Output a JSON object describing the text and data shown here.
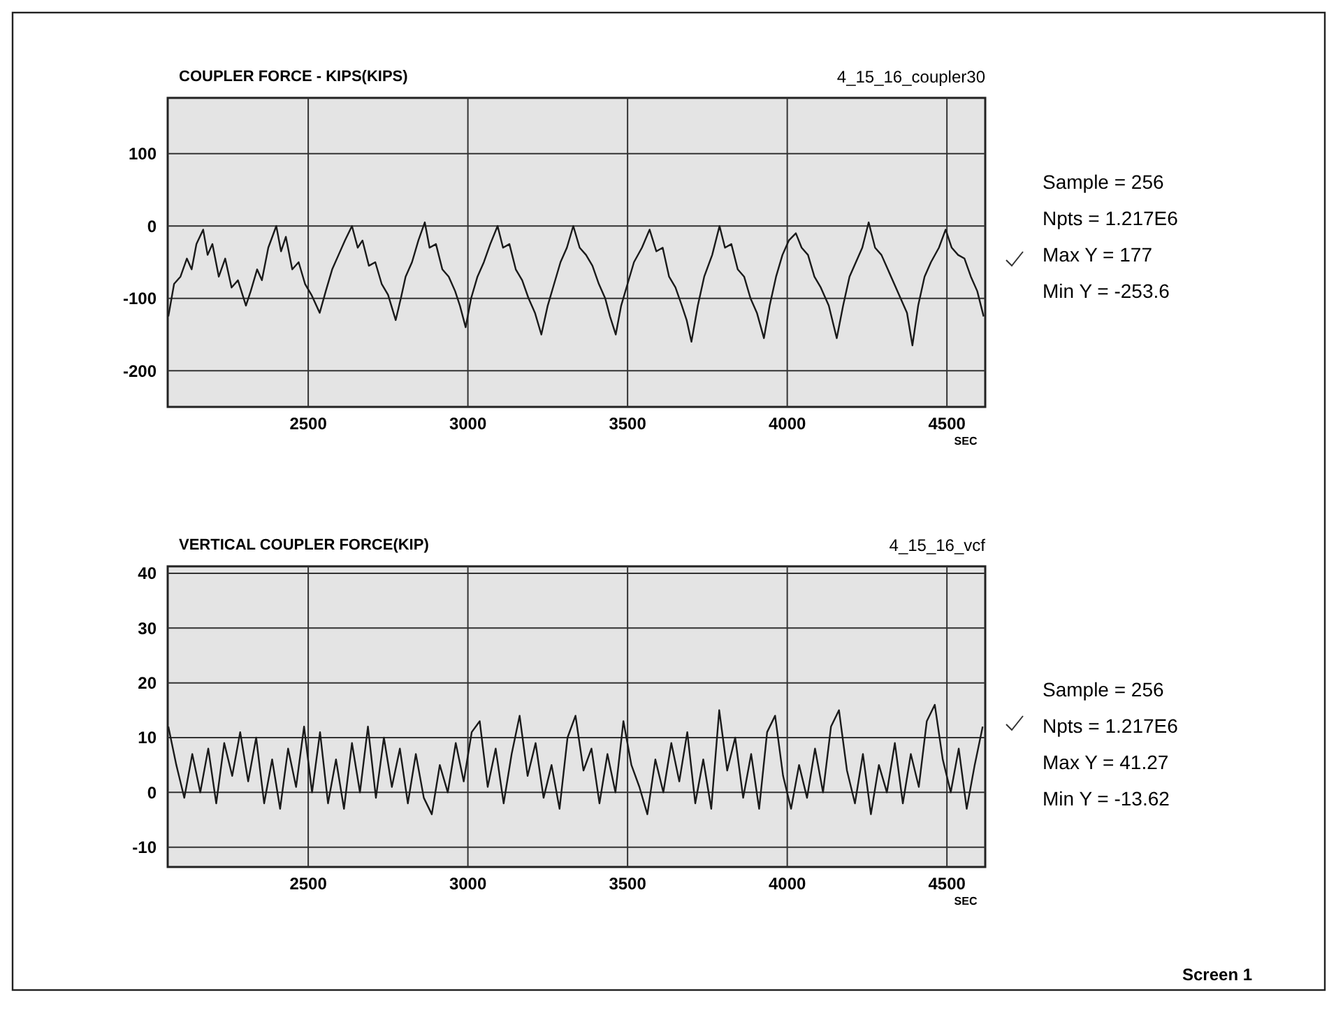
{
  "chart_data": [
    {
      "type": "line",
      "title": "COUPLER FORCE - KIPS(KIPS)",
      "subtitle": "4_15_16_coupler30",
      "xlabel": "SEC",
      "xlim": [
        2060,
        4620
      ],
      "ylim": [
        -250,
        177
      ],
      "xticks": [
        2500,
        3000,
        3500,
        4000,
        4500
      ],
      "yticks": [
        100,
        0,
        -100,
        -200
      ],
      "grid": true,
      "annotations": [
        "Sample = 256",
        "Npts  = 1.217E6",
        "Max Y  = 177",
        "Min Y  = -253.6"
      ],
      "series": [
        {
          "color": "#1a1a1a",
          "x": [
            2062,
            2080,
            2100,
            2120,
            2135,
            2150,
            2171,
            2185,
            2200,
            2220,
            2240,
            2260,
            2280,
            2305,
            2320,
            2340,
            2355,
            2375,
            2400,
            2415,
            2430,
            2450,
            2470,
            2490,
            2510,
            2536,
            2555,
            2575,
            2595,
            2615,
            2637,
            2655,
            2670,
            2690,
            2710,
            2730,
            2750,
            2774,
            2790,
            2805,
            2825,
            2845,
            2865,
            2880,
            2900,
            2920,
            2940,
            2960,
            2975,
            2993,
            3010,
            3030,
            3050,
            3070,
            3093,
            3110,
            3130,
            3150,
            3170,
            3190,
            3210,
            3230,
            3250,
            3270,
            3290,
            3310,
            3330,
            3350,
            3370,
            3390,
            3410,
            3430,
            3445,
            3463,
            3480,
            3500,
            3520,
            3545,
            3569,
            3590,
            3610,
            3630,
            3650,
            3670,
            3685,
            3700,
            3720,
            3740,
            3765,
            3788,
            3805,
            3825,
            3845,
            3865,
            3885,
            3905,
            3927,
            3945,
            3965,
            3985,
            4005,
            4027,
            4045,
            4065,
            4085,
            4105,
            4130,
            4155,
            4175,
            4195,
            4215,
            4235,
            4255,
            4275,
            4295,
            4315,
            4335,
            4355,
            4375,
            4392,
            4410,
            4430,
            4450,
            4475,
            4496,
            4515,
            4535,
            4555,
            4575,
            4595,
            4615
          ],
          "values": [
            -125,
            -80,
            -70,
            -45,
            -60,
            -25,
            -5,
            -40,
            -25,
            -70,
            -45,
            -85,
            -75,
            -110,
            -90,
            -60,
            -75,
            -30,
            0,
            -35,
            -15,
            -60,
            -50,
            -80,
            -95,
            -120,
            -90,
            -60,
            -40,
            -20,
            0,
            -30,
            -20,
            -55,
            -50,
            -80,
            -95,
            -130,
            -100,
            -70,
            -50,
            -20,
            5,
            -30,
            -25,
            -60,
            -70,
            -90,
            -110,
            -140,
            -100,
            -70,
            -50,
            -25,
            0,
            -30,
            -25,
            -60,
            -75,
            -100,
            -120,
            -150,
            -110,
            -80,
            -50,
            -30,
            0,
            -30,
            -40,
            -55,
            -80,
            -100,
            -125,
            -150,
            -110,
            -80,
            -50,
            -30,
            -5,
            -35,
            -30,
            -70,
            -85,
            -110,
            -130,
            -160,
            -110,
            -70,
            -40,
            0,
            -30,
            -25,
            -60,
            -70,
            -100,
            -120,
            -155,
            -110,
            -70,
            -40,
            -20,
            -10,
            -30,
            -40,
            -70,
            -85,
            -110,
            -155,
            -110,
            -70,
            -50,
            -30,
            5,
            -30,
            -40,
            -60,
            -80,
            -100,
            -120,
            -165,
            -110,
            -70,
            -50,
            -30,
            -5,
            -30,
            -40,
            -45,
            -70,
            -90,
            -125
          ]
        }
      ]
    },
    {
      "type": "line",
      "title": "VERTICAL COUPLER FORCE(KIP)",
      "subtitle": "4_15_16_vcf",
      "xlabel": "SEC",
      "xlim": [
        2060,
        4620
      ],
      "ylim": [
        -13.62,
        41.27
      ],
      "xticks": [
        2500,
        3000,
        3500,
        4000,
        4500
      ],
      "yticks": [
        40,
        30,
        20,
        10,
        0,
        -10
      ],
      "grid": true,
      "annotations": [
        "Sample = 256",
        "Npts  = 1.217E6",
        "Max Y  = 41.27",
        "Min Y  = -13.62",
        "Screen 1"
      ],
      "series": [
        {
          "color": "#1a1a1a",
          "x": [
            2062,
            2087,
            2112,
            2137,
            2162,
            2187,
            2212,
            2237,
            2262,
            2287,
            2312,
            2337,
            2362,
            2387,
            2412,
            2437,
            2462,
            2487,
            2512,
            2537,
            2562,
            2587,
            2612,
            2637,
            2662,
            2687,
            2712,
            2737,
            2762,
            2787,
            2812,
            2837,
            2862,
            2887,
            2912,
            2937,
            2962,
            2987,
            3012,
            3037,
            3062,
            3087,
            3112,
            3137,
            3162,
            3187,
            3212,
            3237,
            3262,
            3287,
            3312,
            3337,
            3362,
            3387,
            3412,
            3437,
            3462,
            3487,
            3512,
            3537,
            3562,
            3587,
            3612,
            3637,
            3662,
            3687,
            3712,
            3737,
            3762,
            3787,
            3812,
            3837,
            3862,
            3887,
            3912,
            3937,
            3962,
            3987,
            4012,
            4037,
            4062,
            4087,
            4112,
            4137,
            4162,
            4187,
            4212,
            4237,
            4262,
            4287,
            4312,
            4337,
            4362,
            4387,
            4412,
            4437,
            4462,
            4487,
            4512,
            4537,
            4562,
            4587,
            4612
          ],
          "values": [
            12,
            5,
            -1,
            7,
            0,
            8,
            -2,
            9,
            3,
            11,
            2,
            10,
            -2,
            6,
            -3,
            8,
            1,
            12,
            0,
            11,
            -2,
            6,
            -3,
            9,
            0,
            12,
            -1,
            10,
            1,
            8,
            -2,
            7,
            -1,
            -4,
            5,
            0,
            9,
            2,
            11,
            13,
            1,
            8,
            -2,
            7,
            14,
            3,
            9,
            -1,
            5,
            -3,
            10,
            14,
            4,
            8,
            -2,
            7,
            0,
            13,
            5,
            1,
            -4,
            6,
            0,
            9,
            2,
            11,
            -2,
            6,
            -3,
            15,
            4,
            10,
            -1,
            7,
            -3,
            11,
            14,
            3,
            -3,
            5,
            -1,
            8,
            0,
            12,
            15,
            4,
            -2,
            7,
            -4,
            5,
            0,
            9,
            -2,
            7,
            1,
            13,
            16,
            6,
            0,
            8,
            -3,
            5,
            12
          ]
        }
      ]
    }
  ]
}
